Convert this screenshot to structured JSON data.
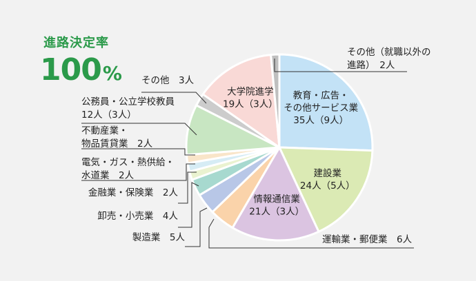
{
  "header": {
    "title": "進路決定率",
    "value": "100",
    "unit": "%"
  },
  "chart_data": {
    "type": "pie",
    "slices": [
      {
        "name": "教育・広告・その他サービス業",
        "value": 35,
        "text": [
          "教育・広告・",
          "その他サービス業",
          "35人（9人）"
        ],
        "color": "#c3e2f6"
      },
      {
        "name": "建設業",
        "value": 24,
        "text": [
          "建設業",
          "24人（5人）"
        ],
        "color": "#dbeab4"
      },
      {
        "name": "情報通信業",
        "value": 21,
        "text": [
          "情報通信業",
          "21人（3人）"
        ],
        "color": "#dbc4e1"
      },
      {
        "name": "運輸業・郵便業",
        "value": 6,
        "text": [
          "運輸業・郵便業　6人"
        ],
        "color": "#fad3aa"
      },
      {
        "name": "製造業",
        "value": 5,
        "text": [
          "製造業　5人"
        ],
        "color": "#b8c7e7"
      },
      {
        "name": "卸売・小売業",
        "value": 4,
        "text": [
          "卸売・小売業　4人"
        ],
        "color": "#a7d9cf"
      },
      {
        "name": "金融業・保険業",
        "value": 2,
        "text": [
          "金融業・保険業　2人"
        ],
        "color": "#eaf2d0"
      },
      {
        "name": "電気・ガス・熱供給・水道業",
        "value": 2,
        "text": [
          "電気・ガス・熱供給・",
          "水道業　2人"
        ],
        "color": "#d6ecf5"
      },
      {
        "name": "不動産業・物品賃貸業",
        "value": 2,
        "text": [
          "不動産業・",
          "物品賃貸業　2人"
        ],
        "color": "#f9e5c9"
      },
      {
        "name": "公務員・公立学校教員",
        "value": 12,
        "text": [
          "公務員・公立学校教員",
          "12人（3人）"
        ],
        "color": "#c8e6c2"
      },
      {
        "name": "その他",
        "value": 3,
        "text": [
          "その他　3人"
        ],
        "color": "#cccccc"
      },
      {
        "name": "大学院進学",
        "value": 19,
        "text": [
          "大学院進学",
          "19人（3人）"
        ],
        "color": "#f9d9d6"
      },
      {
        "name": "その他（就職以外の進路）",
        "value": 2,
        "text": [
          "その他（就職以外の",
          "進路）　2人"
        ],
        "color": "#bfbfbf"
      }
    ]
  }
}
